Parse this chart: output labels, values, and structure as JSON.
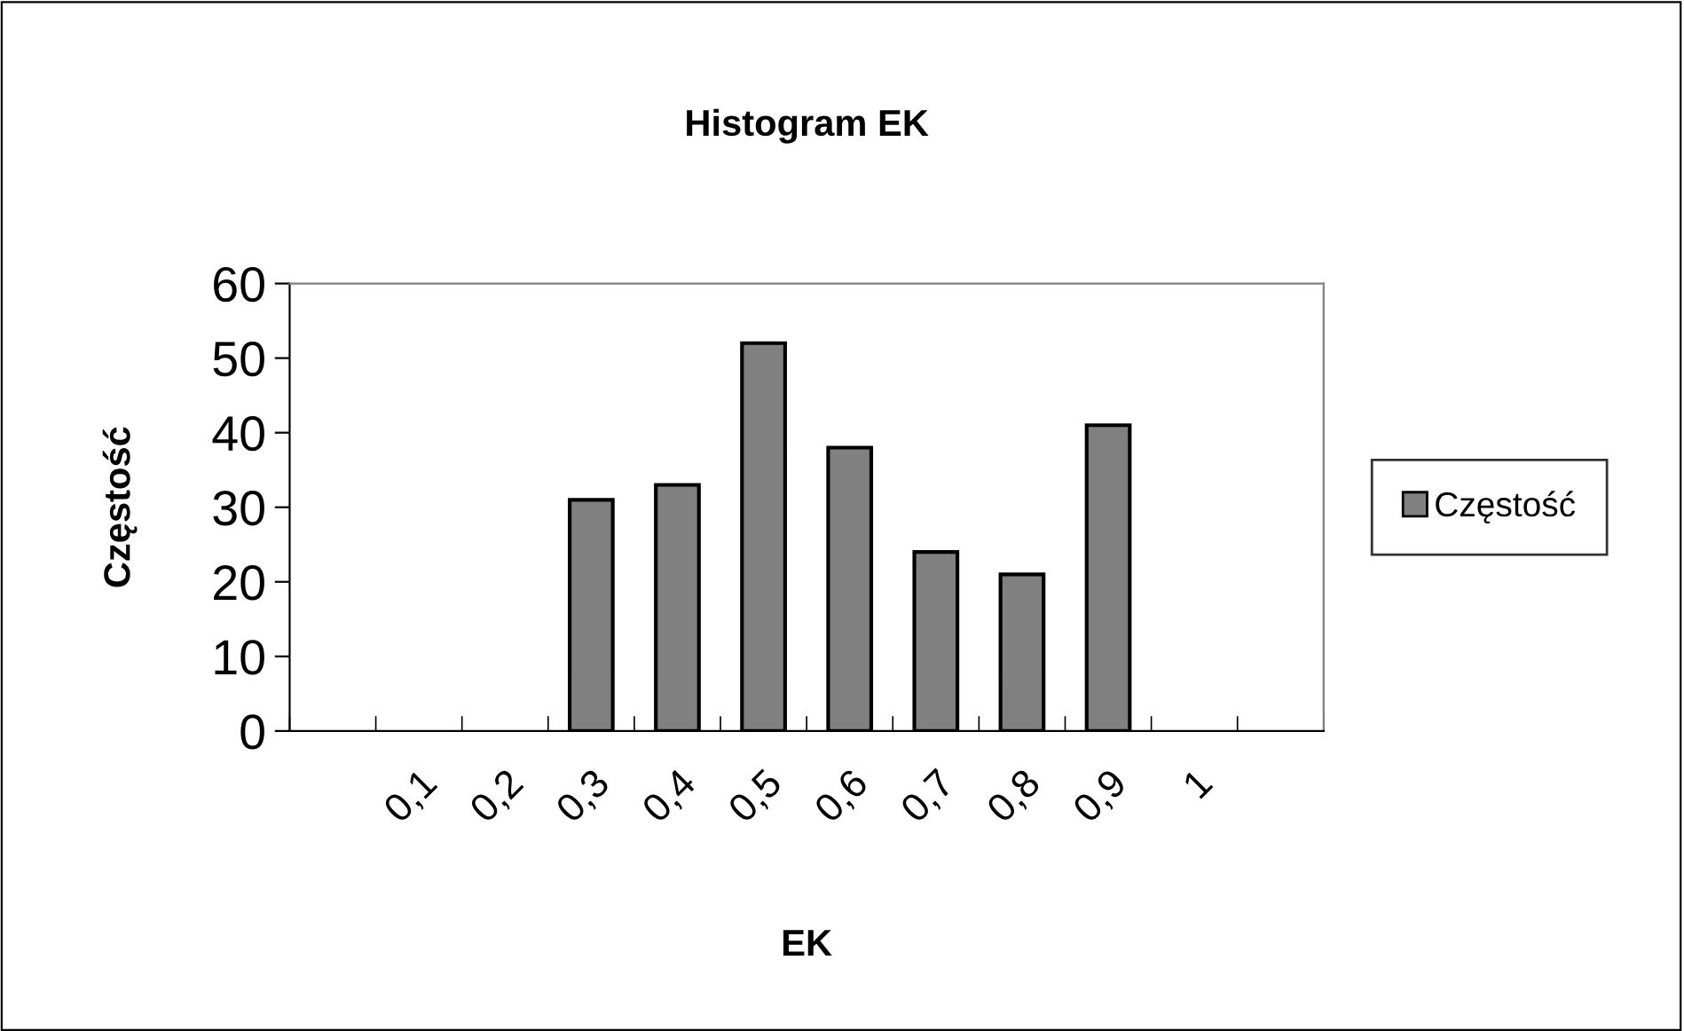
{
  "chart_data": {
    "type": "bar",
    "title": "Histogram EK",
    "xlabel": "EK",
    "ylabel": "Częstość",
    "categories": [
      null,
      "0,1",
      "0,2",
      "0,3",
      "0,4",
      "0,5",
      "0,6",
      "0,7",
      "0,8",
      "0,9",
      "1",
      null
    ],
    "series": [
      {
        "name": "Częstość",
        "color": "#808080",
        "values": [
          0,
          0,
          0,
          31,
          33,
          52,
          38,
          24,
          21,
          41,
          0,
          0
        ]
      }
    ],
    "ylim": [
      0,
      60
    ],
    "yticks": [
      0,
      10,
      20,
      30,
      40,
      50,
      60
    ],
    "grid": false,
    "legend": "right"
  }
}
